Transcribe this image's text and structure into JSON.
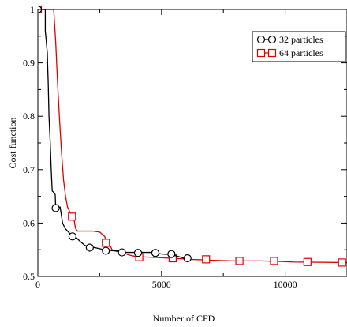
{
  "chart_data": {
    "type": "line",
    "xlabel": "Number of CFD",
    "ylabel": "Cost function",
    "xlim": [
      0,
      12500
    ],
    "ylim": [
      0.5,
      1.0
    ],
    "x_ticks": [
      0,
      5000,
      10000
    ],
    "x_tick_labels": [
      "0",
      "5000",
      "10000"
    ],
    "y_ticks": [
      0.5,
      0.6,
      0.7,
      0.8,
      0.9,
      1.0
    ],
    "y_tick_labels": [
      "0.5",
      "0.6",
      "0.7",
      "0.8",
      "0.9",
      "1"
    ],
    "grid": false,
    "legend_position": "top-right",
    "series": [
      {
        "name": "32 particles",
        "color": "#000000",
        "marker": "circle",
        "line": [
          [
            0,
            1.0
          ],
          [
            300,
            1.0
          ],
          [
            300,
            0.96
          ],
          [
            380,
            0.92
          ],
          [
            420,
            0.86
          ],
          [
            450,
            0.8
          ],
          [
            500,
            0.75
          ],
          [
            540,
            0.7
          ],
          [
            580,
            0.66
          ],
          [
            700,
            0.655
          ],
          [
            720,
            0.628
          ],
          [
            900,
            0.63
          ],
          [
            1000,
            0.6
          ],
          [
            1100,
            0.59
          ],
          [
            1300,
            0.58
          ],
          [
            1500,
            0.575
          ],
          [
            1700,
            0.566
          ],
          [
            1900,
            0.558
          ],
          [
            2200,
            0.555
          ],
          [
            2500,
            0.552
          ],
          [
            2800,
            0.549
          ],
          [
            3100,
            0.548
          ],
          [
            3400,
            0.547
          ],
          [
            3500,
            0.545
          ],
          [
            4300,
            0.545
          ],
          [
            4700,
            0.545
          ],
          [
            5000,
            0.542
          ],
          [
            5400,
            0.541
          ],
          [
            5700,
            0.537
          ],
          [
            6000,
            0.533
          ],
          [
            6100,
            0.533
          ]
        ],
        "markers": [
          [
            0,
            1.0
          ],
          [
            720,
            0.628
          ],
          [
            1400,
            0.575
          ],
          [
            2100,
            0.554
          ],
          [
            2750,
            0.548
          ],
          [
            3400,
            0.545
          ],
          [
            4050,
            0.544
          ],
          [
            4750,
            0.544
          ],
          [
            5400,
            0.542
          ],
          [
            6050,
            0.534
          ]
        ]
      },
      {
        "name": "64 particles",
        "color": "#dd0000",
        "marker": "square",
        "line": [
          [
            0,
            1.0
          ],
          [
            640,
            1.0
          ],
          [
            720,
            0.94
          ],
          [
            800,
            0.86
          ],
          [
            880,
            0.79
          ],
          [
            960,
            0.73
          ],
          [
            1040,
            0.68
          ],
          [
            1120,
            0.65
          ],
          [
            1200,
            0.63
          ],
          [
            1300,
            0.62
          ],
          [
            1380,
            0.612
          ],
          [
            1450,
            0.61
          ],
          [
            1520,
            0.59
          ],
          [
            1600,
            0.585
          ],
          [
            2200,
            0.585
          ],
          [
            2500,
            0.583
          ],
          [
            2700,
            0.575
          ],
          [
            2800,
            0.563
          ],
          [
            2900,
            0.56
          ],
          [
            3000,
            0.55
          ],
          [
            3300,
            0.545
          ],
          [
            3400,
            0.545
          ],
          [
            3700,
            0.54
          ],
          [
            4000,
            0.537
          ],
          [
            4500,
            0.536
          ],
          [
            5000,
            0.535
          ],
          [
            5400,
            0.534
          ],
          [
            5800,
            0.533
          ],
          [
            6100,
            0.532
          ],
          [
            6700,
            0.531
          ],
          [
            7200,
            0.53
          ],
          [
            8000,
            0.529
          ],
          [
            9000,
            0.529
          ],
          [
            9800,
            0.528
          ],
          [
            10300,
            0.527
          ],
          [
            12500,
            0.526
          ]
        ],
        "markers": [
          [
            0,
            1.0
          ],
          [
            1380,
            0.612
          ],
          [
            2750,
            0.563
          ],
          [
            4100,
            0.536
          ],
          [
            5450,
            0.534
          ],
          [
            6800,
            0.532
          ],
          [
            8150,
            0.529
          ],
          [
            9550,
            0.529
          ],
          [
            10900,
            0.527
          ],
          [
            12300,
            0.526
          ]
        ]
      }
    ]
  }
}
